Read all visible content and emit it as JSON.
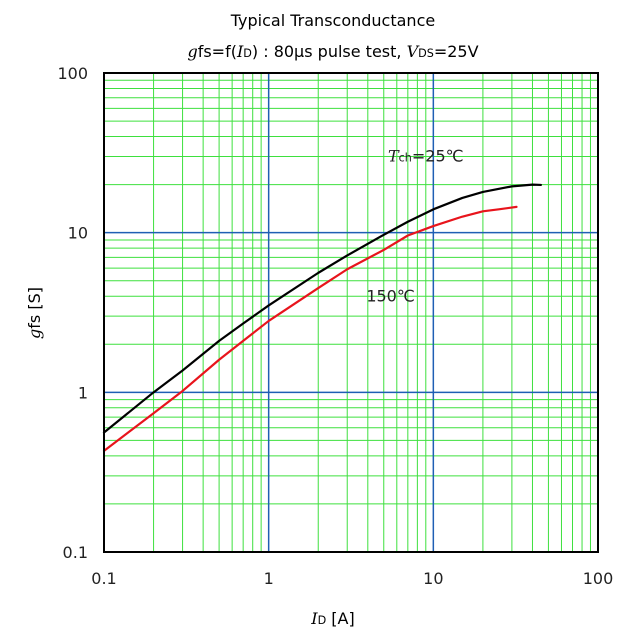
{
  "chart_data": {
    "type": "line",
    "title": "Typical Transconductance",
    "subtitle": {
      "parts": [
        {
          "text": "g",
          "style": "italic"
        },
        {
          "text": "fs=f(",
          "style": "normal"
        },
        {
          "text": "I",
          "style": "italic"
        },
        {
          "text": "D",
          "style": "sub"
        },
        {
          "text": ") : 80μs pulse test, ",
          "style": "normal"
        },
        {
          "text": "V",
          "style": "italic"
        },
        {
          "text": "DS",
          "style": "sub"
        },
        {
          "text": "=25V",
          "style": "normal"
        }
      ]
    },
    "xlabel": {
      "parts": [
        {
          "text": "I",
          "style": "italic"
        },
        {
          "text": "D",
          "style": "sub"
        },
        {
          "text": " [A]",
          "style": "normal"
        }
      ]
    },
    "ylabel": {
      "parts": [
        {
          "text": "g",
          "style": "italic"
        },
        {
          "text": "fs [S]",
          "style": "normal"
        }
      ]
    },
    "x_scale": "log",
    "y_scale": "log",
    "xlim": [
      0.1,
      100
    ],
    "ylim": [
      0.1,
      100
    ],
    "x_ticks": [
      {
        "value": 0.1,
        "label": "0.1"
      },
      {
        "value": 1,
        "label": "1"
      },
      {
        "value": 10,
        "label": "10"
      },
      {
        "value": 100,
        "label": "100"
      }
    ],
    "y_ticks": [
      {
        "value": 0.1,
        "label": "0.1"
      },
      {
        "value": 1,
        "label": "1"
      },
      {
        "value": 10,
        "label": "10"
      },
      {
        "value": 100,
        "label": "100"
      }
    ],
    "grid": {
      "major": true,
      "minor": true
    },
    "series": [
      {
        "color": "#000000",
        "label_parts": [
          {
            "text": "T",
            "style": "italic"
          },
          {
            "text": "ch",
            "style": "sub"
          },
          {
            "text": "=25℃",
            "style": "normal"
          }
        ],
        "label_anchor": [
          9,
          28
        ],
        "points": [
          [
            0.1,
            0.56
          ],
          [
            0.2,
            1.0
          ],
          [
            0.3,
            1.37
          ],
          [
            0.5,
            2.1
          ],
          [
            0.7,
            2.7
          ],
          [
            1,
            3.5
          ],
          [
            2,
            5.6
          ],
          [
            3,
            7.2
          ],
          [
            5,
            9.7
          ],
          [
            7,
            11.7
          ],
          [
            10,
            14.0
          ],
          [
            15,
            16.5
          ],
          [
            20,
            18.0
          ],
          [
            30,
            19.5
          ],
          [
            40,
            20.0
          ],
          [
            45,
            19.9
          ]
        ]
      },
      {
        "color": "#e8141c",
        "label_parts": [
          {
            "text": "150℃",
            "style": "normal"
          }
        ],
        "label_anchor": [
          5.5,
          3.7
        ],
        "points": [
          [
            0.1,
            0.43
          ],
          [
            0.2,
            0.74
          ],
          [
            0.3,
            1.02
          ],
          [
            0.5,
            1.6
          ],
          [
            0.7,
            2.1
          ],
          [
            1,
            2.8
          ],
          [
            2,
            4.5
          ],
          [
            3,
            5.9
          ],
          [
            5,
            7.8
          ],
          [
            7,
            9.6
          ],
          [
            10,
            11.0
          ],
          [
            15,
            12.6
          ],
          [
            20,
            13.6
          ],
          [
            25,
            14.0
          ],
          [
            32,
            14.5
          ]
        ]
      }
    ],
    "colors": {
      "major_grid": "#1f5fb4",
      "minor_grid": "#3ee03e",
      "frame": "#000000"
    }
  }
}
